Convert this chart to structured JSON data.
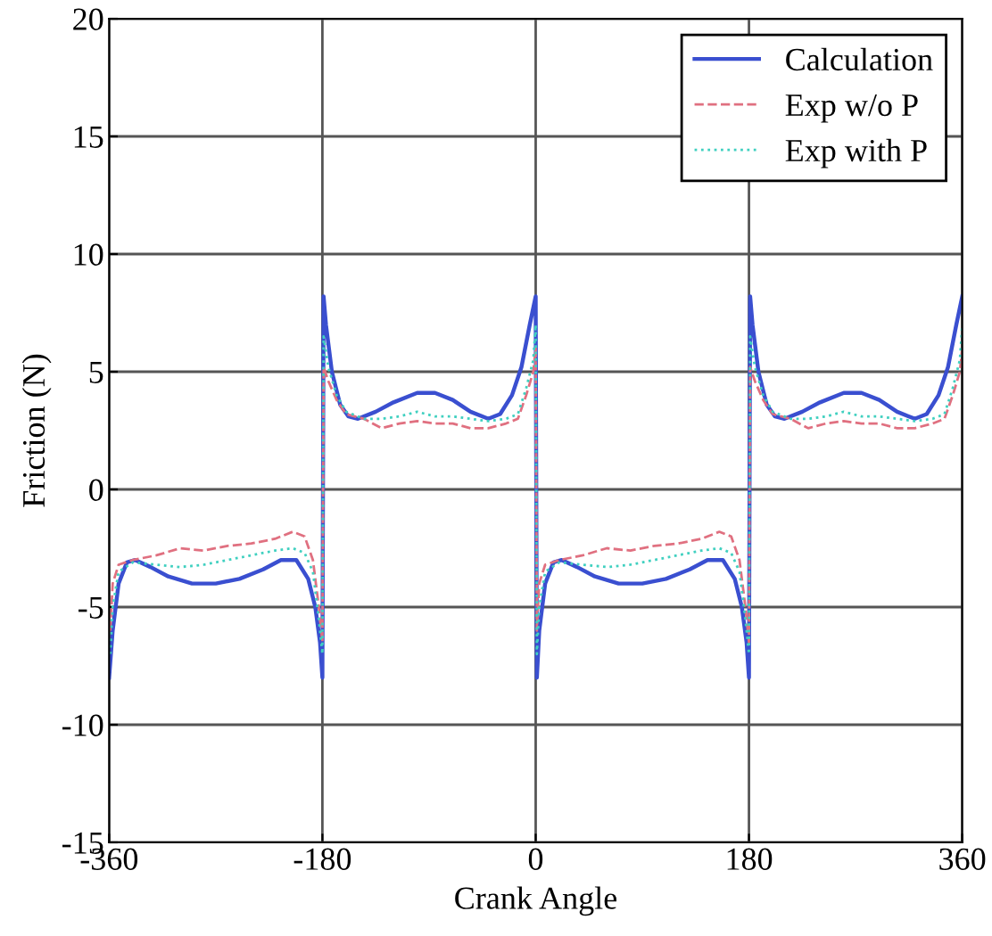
{
  "chart_data": {
    "type": "line",
    "xlabel": "Crank Angle",
    "ylabel": "Friction (N)",
    "xlim": [
      -360,
      360
    ],
    "xticks": [
      -360,
      -180,
      0,
      180,
      360
    ],
    "ylim": [
      -15,
      20
    ],
    "yticks": [
      -15,
      -10,
      -5,
      0,
      5,
      10,
      15,
      20
    ],
    "grid": true,
    "legend": "top right",
    "series": [
      {
        "name": "Calculation",
        "color": "#3a4fd0",
        "line_style": "solid",
        "x": [
          -360,
          -357,
          -352,
          -345,
          -338,
          -325,
          -310,
          -290,
          -270,
          -250,
          -230,
          -215,
          -202,
          -192,
          -186,
          -182,
          -180,
          -179,
          -177,
          -172,
          -165,
          -158,
          -150,
          -135,
          -120,
          -100,
          -85,
          -70,
          -55,
          -40,
          -30,
          -20,
          -12,
          -5,
          0,
          1,
          3,
          8,
          15,
          22,
          35,
          50,
          70,
          90,
          110,
          130,
          145,
          158,
          168,
          174,
          178,
          180,
          181,
          183,
          188,
          195,
          202,
          210,
          225,
          240,
          260,
          275,
          290,
          305,
          320,
          330,
          340,
          348,
          355,
          360
        ],
        "values": [
          -8,
          -6,
          -4,
          -3.1,
          -3,
          -3.3,
          -3.7,
          -4,
          -4,
          -3.8,
          -3.4,
          -3,
          -3,
          -3.8,
          -5,
          -6.5,
          -8,
          8.2,
          7,
          5,
          3.6,
          3.1,
          3,
          3.3,
          3.7,
          4.1,
          4.1,
          3.8,
          3.3,
          3,
          3.2,
          4,
          5.2,
          7,
          8.2,
          -8,
          -6,
          -4,
          -3.1,
          -3,
          -3.3,
          -3.7,
          -4,
          -4,
          -3.8,
          -3.4,
          -3,
          -3,
          -3.8,
          -5,
          -6.5,
          -8,
          8.2,
          7,
          5,
          3.6,
          3.1,
          3,
          3.3,
          3.7,
          4.1,
          4.1,
          3.8,
          3.3,
          3,
          3.2,
          4,
          5.2,
          7,
          8.2
        ]
      },
      {
        "name": "Exp w/o P",
        "color": "#e07080",
        "line_style": "dashed",
        "x": [
          -359,
          -357,
          -352,
          -340,
          -320,
          -300,
          -280,
          -260,
          -240,
          -220,
          -205,
          -195,
          -188,
          -183,
          -180,
          -179,
          -175,
          -168,
          -160,
          -145,
          -130,
          -115,
          -100,
          -85,
          -70,
          -55,
          -40,
          -25,
          -15,
          -8,
          -2,
          0,
          1,
          3,
          8,
          20,
          40,
          60,
          80,
          100,
          120,
          140,
          155,
          165,
          172,
          177,
          180,
          181,
          185,
          192,
          200,
          215,
          230,
          245,
          260,
          275,
          290,
          305,
          320,
          335,
          345,
          352,
          358,
          360
        ],
        "values": [
          -6,
          -4,
          -3.2,
          -3,
          -2.8,
          -2.5,
          -2.6,
          -2.4,
          -2.3,
          -2.1,
          -1.8,
          -2.0,
          -3,
          -5,
          -6.5,
          5.2,
          4.6,
          3.8,
          3.2,
          3.0,
          2.6,
          2.8,
          2.9,
          2.8,
          2.8,
          2.6,
          2.6,
          2.8,
          3.0,
          4,
          5,
          6,
          -6,
          -4,
          -3.2,
          -3,
          -2.8,
          -2.5,
          -2.6,
          -2.4,
          -2.3,
          -2.1,
          -1.8,
          -2.0,
          -3,
          -5,
          -6.5,
          5.2,
          4.6,
          3.8,
          3.2,
          3.0,
          2.6,
          2.8,
          2.9,
          2.8,
          2.8,
          2.6,
          2.6,
          2.8,
          3.0,
          4,
          5,
          6
        ]
      },
      {
        "name": "Exp with P",
        "color": "#40d0c0",
        "line_style": "dotted",
        "x": [
          -359,
          -357,
          -352,
          -340,
          -320,
          -300,
          -280,
          -260,
          -240,
          -220,
          -205,
          -195,
          -188,
          -183,
          -180,
          -179,
          -175,
          -168,
          -160,
          -145,
          -130,
          -115,
          -100,
          -85,
          -70,
          -55,
          -40,
          -25,
          -15,
          -8,
          -2,
          0,
          1,
          3,
          8,
          20,
          40,
          60,
          80,
          100,
          120,
          140,
          155,
          165,
          172,
          177,
          180,
          181,
          185,
          192,
          200,
          215,
          230,
          245,
          260,
          275,
          290,
          305,
          320,
          335,
          345,
          352,
          358,
          360
        ],
        "values": [
          -7,
          -5,
          -3.5,
          -3.1,
          -3.2,
          -3.3,
          -3.2,
          -3,
          -2.8,
          -2.6,
          -2.5,
          -2.7,
          -3.5,
          -5.5,
          -7,
          6.5,
          5.2,
          4,
          3.3,
          3.0,
          3.0,
          3.1,
          3.3,
          3.1,
          3.1,
          3.0,
          2.9,
          3.0,
          3.2,
          4.3,
          5.5,
          7,
          -7,
          -5,
          -3.5,
          -3.1,
          -3.2,
          -3.3,
          -3.2,
          -3,
          -2.8,
          -2.6,
          -2.5,
          -2.7,
          -3.5,
          -5.5,
          -7,
          6.5,
          5.2,
          4,
          3.3,
          3.0,
          3.0,
          3.1,
          3.3,
          3.1,
          3.1,
          3.0,
          2.9,
          3.0,
          3.2,
          4.3,
          5.5,
          7
        ]
      }
    ]
  }
}
